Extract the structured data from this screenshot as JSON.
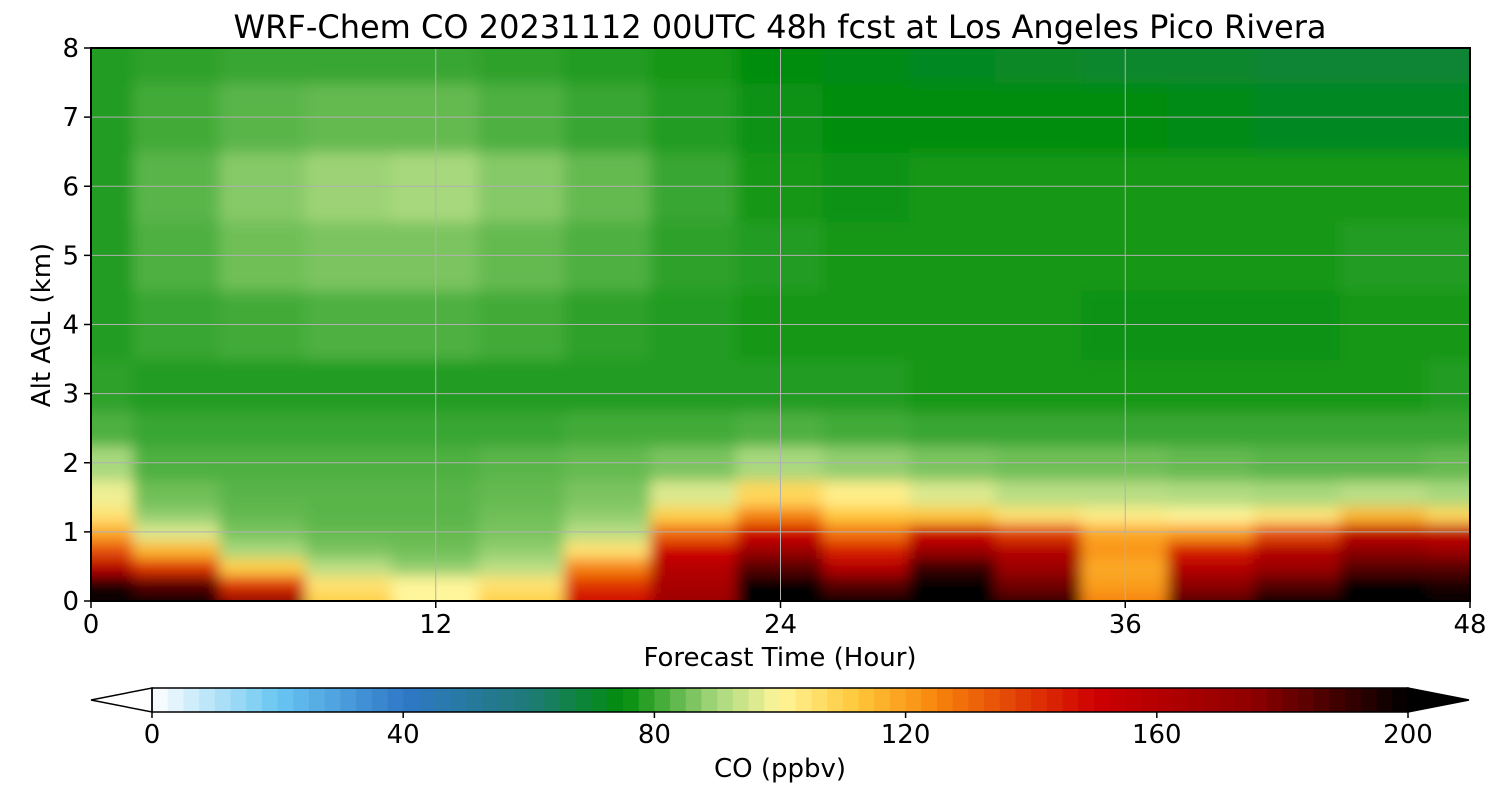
{
  "chart_data": {
    "type": "heatmap",
    "title": "WRF-Chem CO  20231112 00UTC 48h fcst at Los Angeles Pico Rivera",
    "xlabel": "Forecast Time (Hour)",
    "ylabel": "Alt AGL (km)",
    "xlim": [
      0,
      48
    ],
    "ylim": [
      0,
      8
    ],
    "xticks": [
      "0",
      "12",
      "24",
      "36",
      "48"
    ],
    "yticks": [
      "0",
      "1",
      "2",
      "3",
      "4",
      "5",
      "6",
      "7",
      "8"
    ],
    "grid": true,
    "time_hours": [
      0,
      3,
      6,
      9,
      12,
      15,
      18,
      21,
      24,
      27,
      30,
      33,
      36,
      39,
      42,
      45,
      48
    ],
    "altitude_km": [
      0,
      0.25,
      0.5,
      0.75,
      1,
      1.25,
      1.5,
      2,
      2.5,
      3,
      4,
      5,
      6,
      7,
      8
    ],
    "co_ppbv": [
      [
        210,
        205,
        175,
        110,
        100,
        110,
        150,
        170,
        210,
        205,
        215,
        190,
        125,
        185,
        200,
        210,
        205
      ],
      [
        195,
        185,
        140,
        105,
        100,
        105,
        140,
        165,
        200,
        185,
        205,
        180,
        120,
        175,
        185,
        200,
        195
      ],
      [
        160,
        140,
        110,
        92,
        88,
        92,
        125,
        160,
        185,
        160,
        190,
        170,
        118,
        160,
        170,
        185,
        185
      ],
      [
        135,
        115,
        90,
        86,
        85,
        88,
        105,
        150,
        170,
        145,
        170,
        160,
        122,
        145,
        160,
        175,
        170
      ],
      [
        118,
        96,
        86,
        84,
        84,
        86,
        92,
        130,
        150,
        128,
        150,
        138,
        118,
        120,
        135,
        155,
        155
      ],
      [
        105,
        88,
        84,
        83,
        83,
        85,
        88,
        110,
        125,
        112,
        112,
        105,
        102,
        100,
        104,
        115,
        108
      ],
      [
        98,
        85,
        83,
        83,
        83,
        84,
        86,
        96,
        108,
        102,
        96,
        92,
        92,
        91,
        90,
        92,
        90
      ],
      [
        90,
        82,
        82,
        82,
        82,
        83,
        84,
        86,
        90,
        88,
        86,
        85,
        85,
        84,
        83,
        83,
        84
      ],
      [
        82,
        80,
        80,
        80,
        80,
        80,
        81,
        81,
        82,
        81,
        80,
        80,
        80,
        80,
        80,
        80,
        80
      ],
      [
        79,
        78,
        78,
        78,
        78,
        78,
        78,
        78,
        78,
        78,
        77,
        77,
        77,
        77,
        77,
        77,
        78
      ],
      [
        78,
        80,
        81,
        82,
        82,
        81,
        79,
        78,
        77,
        77,
        77,
        77,
        76,
        76,
        76,
        77,
        77
      ],
      [
        78,
        82,
        85,
        86,
        86,
        84,
        82,
        79,
        78,
        77,
        77,
        77,
        77,
        77,
        77,
        78,
        78
      ],
      [
        78,
        83,
        87,
        89,
        90,
        87,
        84,
        80,
        77,
        76,
        77,
        77,
        77,
        77,
        77,
        77,
        77
      ],
      [
        78,
        81,
        83,
        84,
        84,
        82,
        80,
        78,
        76,
        75,
        75,
        75,
        74,
        73,
        72,
        72,
        72
      ],
      [
        78,
        79,
        80,
        80,
        80,
        79,
        78,
        77,
        75,
        73,
        72,
        71,
        70,
        70,
        69,
        69,
        69
      ]
    ],
    "colorbar": {
      "label": "CO  (ppbv)",
      "min": 0,
      "max": 200,
      "ticks": [
        "0",
        "40",
        "80",
        "120",
        "160",
        "200"
      ],
      "extend": "both",
      "colors": {
        "0": "#ffffff",
        "20": "#69c6f2",
        "40": "#2f78c8",
        "60": "#1f7a78",
        "75": "#008d0a",
        "90": "#a8d87e",
        "100": "#fff59a",
        "112": "#ffc83a",
        "125": "#f7840c",
        "150": "#cf0000",
        "175": "#8f0000",
        "200": "#000000"
      }
    }
  }
}
